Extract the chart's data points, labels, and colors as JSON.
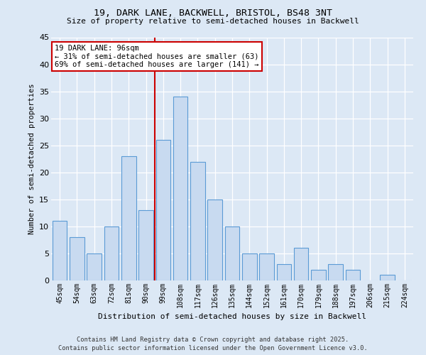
{
  "title_line1": "19, DARK LANE, BACKWELL, BRISTOL, BS48 3NT",
  "title_line2": "Size of property relative to semi-detached houses in Backwell",
  "xlabel": "Distribution of semi-detached houses by size in Backwell",
  "ylabel": "Number of semi-detached properties",
  "categories": [
    "45sqm",
    "54sqm",
    "63sqm",
    "72sqm",
    "81sqm",
    "90sqm",
    "99sqm",
    "108sqm",
    "117sqm",
    "126sqm",
    "135sqm",
    "144sqm",
    "152sqm",
    "161sqm",
    "170sqm",
    "179sqm",
    "188sqm",
    "197sqm",
    "206sqm",
    "215sqm",
    "224sqm"
  ],
  "values": [
    11,
    8,
    5,
    10,
    23,
    13,
    26,
    34,
    22,
    15,
    10,
    5,
    5,
    3,
    6,
    2,
    3,
    2,
    0,
    1,
    0
  ],
  "bar_color": "#c8daf0",
  "bar_edge_color": "#5b9bd5",
  "vline_color": "#cc0000",
  "annotation_line1": "19 DARK LANE: 96sqm",
  "annotation_line2": "← 31% of semi-detached houses are smaller (63)",
  "annotation_line3": "69% of semi-detached houses are larger (141) →",
  "ylim": [
    0,
    45
  ],
  "yticks": [
    0,
    5,
    10,
    15,
    20,
    25,
    30,
    35,
    40,
    45
  ],
  "background_color": "#dce8f5",
  "grid_color": "#ffffff",
  "footer_line1": "Contains HM Land Registry data © Crown copyright and database right 2025.",
  "footer_line2": "Contains public sector information licensed under the Open Government Licence v3.0."
}
